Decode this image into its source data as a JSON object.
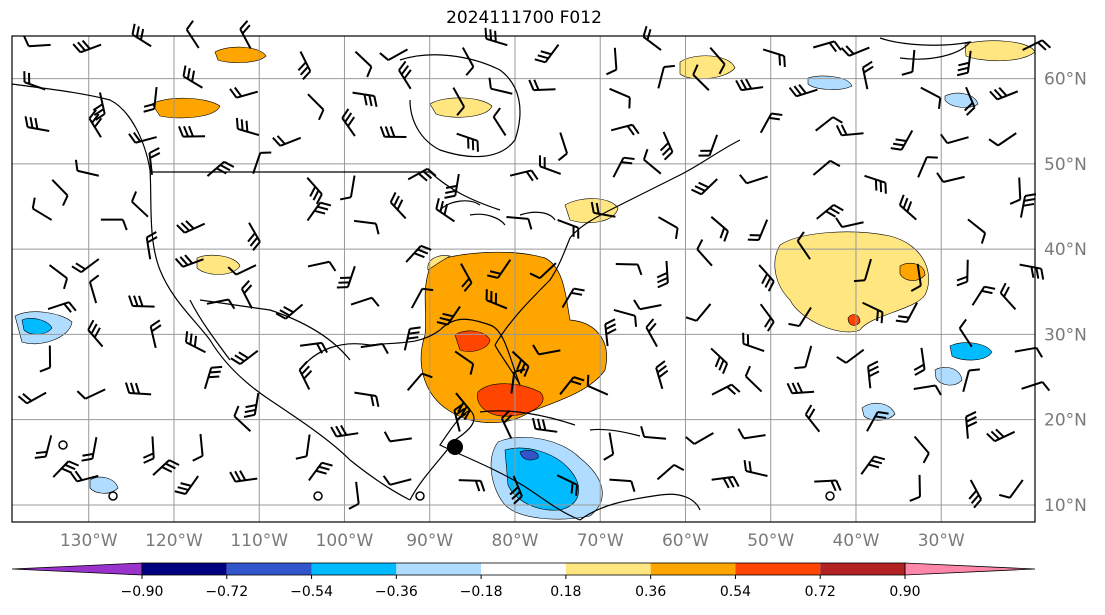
{
  "title": "2024111700 F012",
  "lat_labels": [
    {
      "label": "60°N",
      "lat": 60
    },
    {
      "label": "50°N",
      "lat": 50
    },
    {
      "label": "40°N",
      "lat": 40
    },
    {
      "label": "30°N",
      "lat": 30
    },
    {
      "label": "20°N",
      "lat": 20
    },
    {
      "label": "10°N",
      "lat": 10
    }
  ],
  "lon_labels": [
    {
      "label": "130°W",
      "lon": -130
    },
    {
      "label": "120°W",
      "lon": -120
    },
    {
      "label": "110°W",
      "lon": -110
    },
    {
      "label": "100°W",
      "lon": -100
    },
    {
      "label": "90°W",
      "lon": -90
    },
    {
      "label": "80°W",
      "lon": -80
    },
    {
      "label": "70°W",
      "lon": -70
    },
    {
      "label": "60°W",
      "lon": -60
    },
    {
      "label": "50°W",
      "lon": -50
    },
    {
      "label": "40°W",
      "lon": -40
    },
    {
      "label": "30°W",
      "lon": -30
    }
  ],
  "colorbar": {
    "ticks": [
      "−0.90",
      "−0.72",
      "−0.54",
      "−0.36",
      "−0.18",
      "0.18",
      "0.36",
      "0.54",
      "0.72",
      "0.90"
    ],
    "colors": [
      "#9933cc",
      "#000080",
      "#3355cc",
      "#00bbff",
      "#b0ddff",
      "#ffffff",
      "#ffe680",
      "#ffa500",
      "#ff4500",
      "#b22222",
      "#ff88aa"
    ]
  },
  "colors": {
    "gridline": "#999999",
    "coast": "#000000",
    "map_border": "#000000",
    "hurricane_marker": "#000000"
  },
  "map_extent": {
    "lon_min": -139,
    "lon_max": -19,
    "lat_min": 8,
    "lat_max": 65
  }
}
